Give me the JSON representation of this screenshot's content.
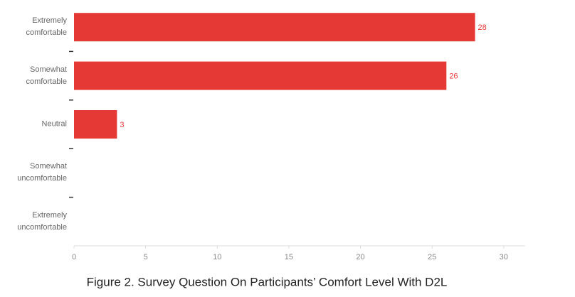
{
  "chart_data": {
    "type": "bar",
    "orientation": "horizontal",
    "title": "Figure 2. Survey Question On Participants’ Comfort Level With D2L",
    "categories": [
      "Extremely comfortable",
      "Somewhat comfortable",
      "Neutral",
      "Somewhat uncomfortable",
      "Extremely uncomfortable"
    ],
    "values": [
      28,
      26,
      3,
      0,
      0
    ],
    "value_labels": [
      "28",
      "26",
      "3",
      null,
      null
    ],
    "color": "#e53935",
    "xlim": [
      0,
      31.5
    ],
    "xticks": [
      0,
      5,
      10,
      15,
      20,
      25,
      30
    ],
    "grid": false
  }
}
